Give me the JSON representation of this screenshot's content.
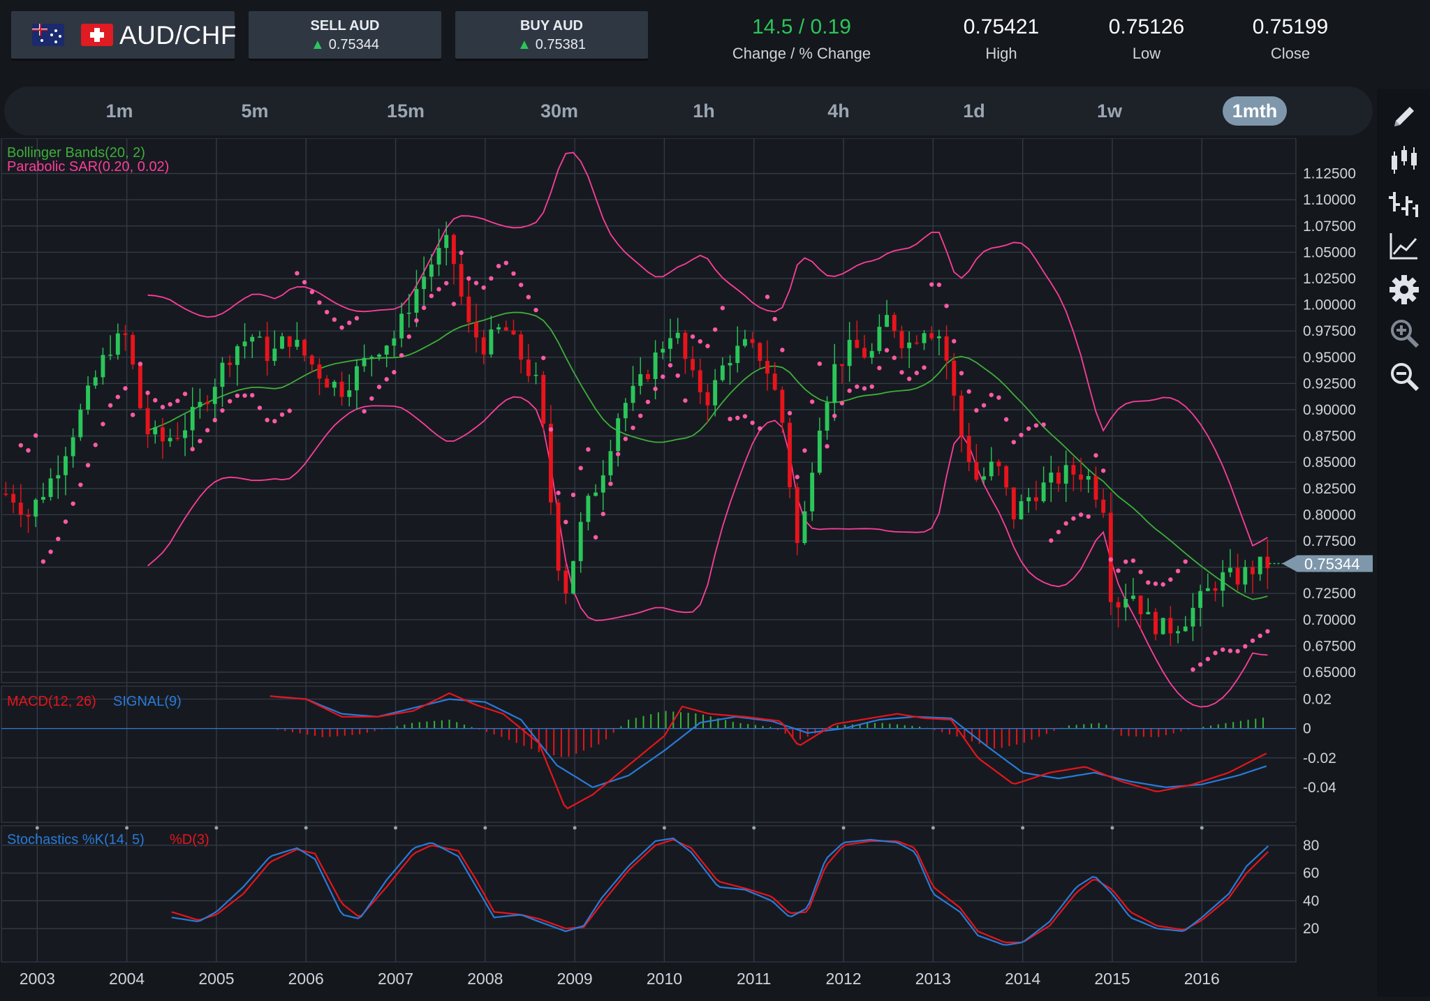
{
  "header": {
    "pair": "AUD/CHF",
    "sell": {
      "label": "SELL AUD",
      "price": "0.75344",
      "arrow": "▲"
    },
    "buy": {
      "label": "BUY AUD",
      "price": "0.75381",
      "arrow": "▲"
    },
    "change": {
      "value": "14.5 / 0.19",
      "label": "Change / % Change"
    },
    "high": {
      "value": "0.75421",
      "label": "High"
    },
    "low": {
      "value": "0.75126",
      "label": "Low"
    },
    "close": {
      "value": "0.75199",
      "label": "Close"
    }
  },
  "timeframes": {
    "items": [
      "1m",
      "5m",
      "15m",
      "30m",
      "1h",
      "4h",
      "1d",
      "1w",
      "1mth"
    ],
    "active": "1mth"
  },
  "toolbar": {
    "icons": [
      "pencil-icon",
      "candlestick-icon",
      "ohlc-icon",
      "line-chart-icon",
      "settings-icon",
      "zoom-in-icon",
      "zoom-out-icon"
    ]
  },
  "colors": {
    "up": "#2bc65a",
    "down": "#e8141c",
    "bollinger_mid": "#3fae3a",
    "bollinger_band": "#ff3d9a",
    "sar": "#ff5aa5",
    "macd": "#e8141c",
    "signal": "#2a7ad8",
    "histogram_pos": "#37b33a",
    "histogram_neg": "#e8141c",
    "stoch_k": "#2a7ad8",
    "stoch_d": "#e8141c"
  },
  "chart_data": [
    {
      "type": "candlestick",
      "panel": "price",
      "legend": [
        "Bollinger Bands(20, 2)",
        "Parabolic SAR(0.20, 0.02)"
      ],
      "x_labels": [
        "2003",
        "2004",
        "2005",
        "2006",
        "2007",
        "2008",
        "2009",
        "2010",
        "2011",
        "2012",
        "2013",
        "2014",
        "2015",
        "2016"
      ],
      "x_range": [
        2002.6,
        2017.05
      ],
      "y_ticks": [
        "1.12500",
        "1.10000",
        "1.07500",
        "1.05000",
        "1.02500",
        "1.00000",
        "0.97500",
        "0.95000",
        "0.92500",
        "0.90000",
        "0.87500",
        "0.85000",
        "0.82500",
        "0.80000",
        "0.77500",
        "0.75000",
        "0.72500",
        "0.70000",
        "0.67500",
        "0.65000"
      ],
      "ylim": [
        0.64,
        1.14
      ],
      "current_price_label": "0.75344",
      "current_price": 0.75344,
      "closes_approx": [
        [
          2002.7,
          0.82
        ],
        [
          2002.9,
          0.8
        ],
        [
          2003.2,
          0.84
        ],
        [
          2003.4,
          0.88
        ],
        [
          2003.6,
          0.92
        ],
        [
          2003.8,
          0.96
        ],
        [
          2004.0,
          0.97
        ],
        [
          2004.2,
          0.88
        ],
        [
          2004.4,
          0.87
        ],
        [
          2004.6,
          0.88
        ],
        [
          2004.8,
          0.9
        ],
        [
          2005.0,
          0.93
        ],
        [
          2005.2,
          0.96
        ],
        [
          2005.4,
          0.97
        ],
        [
          2005.6,
          0.95
        ],
        [
          2005.8,
          0.97
        ],
        [
          2006.0,
          0.95
        ],
        [
          2006.2,
          0.93
        ],
        [
          2006.4,
          0.92
        ],
        [
          2006.6,
          0.94
        ],
        [
          2006.8,
          0.96
        ],
        [
          2007.0,
          0.97
        ],
        [
          2007.2,
          1.01
        ],
        [
          2007.4,
          1.04
        ],
        [
          2007.6,
          1.06
        ],
        [
          2007.8,
          0.98
        ],
        [
          2008.0,
          0.96
        ],
        [
          2008.2,
          0.98
        ],
        [
          2008.4,
          0.95
        ],
        [
          2008.6,
          0.92
        ],
        [
          2008.8,
          0.76
        ],
        [
          2008.9,
          0.73
        ],
        [
          2009.1,
          0.8
        ],
        [
          2009.3,
          0.84
        ],
        [
          2009.5,
          0.9
        ],
        [
          2009.7,
          0.92
        ],
        [
          2009.9,
          0.95
        ],
        [
          2010.1,
          0.98
        ],
        [
          2010.3,
          0.93
        ],
        [
          2010.5,
          0.91
        ],
        [
          2010.7,
          0.95
        ],
        [
          2010.9,
          0.96
        ],
        [
          2011.1,
          0.95
        ],
        [
          2011.3,
          0.9
        ],
        [
          2011.5,
          0.76
        ],
        [
          2011.7,
          0.88
        ],
        [
          2011.9,
          0.94
        ],
        [
          2012.1,
          0.96
        ],
        [
          2012.3,
          0.95
        ],
        [
          2012.5,
          0.99
        ],
        [
          2012.7,
          0.96
        ],
        [
          2012.9,
          0.98
        ],
        [
          2013.1,
          0.97
        ],
        [
          2013.3,
          0.88
        ],
        [
          2013.5,
          0.83
        ],
        [
          2013.7,
          0.85
        ],
        [
          2013.9,
          0.8
        ],
        [
          2014.1,
          0.82
        ],
        [
          2014.3,
          0.83
        ],
        [
          2014.5,
          0.84
        ],
        [
          2014.7,
          0.84
        ],
        [
          2014.9,
          0.81
        ],
        [
          2015.0,
          0.71
        ],
        [
          2015.2,
          0.73
        ],
        [
          2015.4,
          0.7
        ],
        [
          2015.6,
          0.69
        ],
        [
          2015.8,
          0.7
        ],
        [
          2016.0,
          0.72
        ],
        [
          2016.2,
          0.74
        ],
        [
          2016.4,
          0.74
        ],
        [
          2016.6,
          0.75
        ],
        [
          2016.75,
          0.753
        ]
      ]
    },
    {
      "type": "line",
      "panel": "macd",
      "legend": [
        "MACD(12, 26)",
        "SIGNAL(9)"
      ],
      "y_ticks": [
        "0.02",
        "0",
        "-0.02",
        "-0.04"
      ],
      "ylim": [
        -0.06,
        0.025
      ],
      "series": [
        {
          "name": "MACD(12, 26)",
          "points": [
            [
              2005.6,
              0.022
            ],
            [
              2006.0,
              0.02
            ],
            [
              2006.4,
              0.008
            ],
            [
              2006.8,
              0.008
            ],
            [
              2007.2,
              0.012
            ],
            [
              2007.6,
              0.024
            ],
            [
              2007.9,
              0.016
            ],
            [
              2008.2,
              0.01
            ],
            [
              2008.6,
              -0.01
            ],
            [
              2008.9,
              -0.055
            ],
            [
              2009.2,
              -0.045
            ],
            [
              2009.6,
              -0.025
            ],
            [
              2010.0,
              -0.005
            ],
            [
              2010.2,
              0.015
            ],
            [
              2010.5,
              0.01
            ],
            [
              2010.9,
              0.008
            ],
            [
              2011.3,
              0.005
            ],
            [
              2011.5,
              -0.012
            ],
            [
              2011.9,
              0.003
            ],
            [
              2012.2,
              0.006
            ],
            [
              2012.6,
              0.01
            ],
            [
              2012.9,
              0.007
            ],
            [
              2013.2,
              0.006
            ],
            [
              2013.5,
              -0.02
            ],
            [
              2013.9,
              -0.038
            ],
            [
              2014.3,
              -0.03
            ],
            [
              2014.7,
              -0.026
            ],
            [
              2015.1,
              -0.036
            ],
            [
              2015.5,
              -0.043
            ],
            [
              2015.9,
              -0.038
            ],
            [
              2016.3,
              -0.03
            ],
            [
              2016.75,
              -0.016
            ]
          ]
        },
        {
          "name": "SIGNAL(9)",
          "points": [
            [
              2005.6,
              0.022
            ],
            [
              2006.0,
              0.02
            ],
            [
              2006.4,
              0.01
            ],
            [
              2006.8,
              0.008
            ],
            [
              2007.2,
              0.014
            ],
            [
              2007.6,
              0.02
            ],
            [
              2008.0,
              0.018
            ],
            [
              2008.4,
              0.006
            ],
            [
              2008.8,
              -0.025
            ],
            [
              2009.2,
              -0.04
            ],
            [
              2009.6,
              -0.032
            ],
            [
              2010.0,
              -0.015
            ],
            [
              2010.4,
              0.004
            ],
            [
              2010.8,
              0.008
            ],
            [
              2011.2,
              0.005
            ],
            [
              2011.6,
              -0.003
            ],
            [
              2012.0,
              0.0
            ],
            [
              2012.4,
              0.006
            ],
            [
              2012.8,
              0.008
            ],
            [
              2013.2,
              0.007
            ],
            [
              2013.6,
              -0.012
            ],
            [
              2014.0,
              -0.03
            ],
            [
              2014.4,
              -0.034
            ],
            [
              2014.8,
              -0.03
            ],
            [
              2015.2,
              -0.036
            ],
            [
              2015.6,
              -0.04
            ],
            [
              2016.0,
              -0.038
            ],
            [
              2016.4,
              -0.032
            ],
            [
              2016.75,
              -0.025
            ]
          ]
        }
      ],
      "histogram": [
        [
          2005.6,
          0.0
        ],
        [
          2006.2,
          -0.006
        ],
        [
          2006.6,
          -0.004
        ],
        [
          2007.2,
          0.004
        ],
        [
          2007.6,
          0.006
        ],
        [
          2008.2,
          -0.006
        ],
        [
          2008.6,
          -0.016
        ],
        [
          2008.9,
          -0.02
        ],
        [
          2009.3,
          -0.01
        ],
        [
          2009.6,
          0.006
        ],
        [
          2010.0,
          0.012
        ],
        [
          2010.4,
          0.01
        ],
        [
          2010.8,
          0.004
        ],
        [
          2011.2,
          0.001
        ],
        [
          2011.5,
          -0.008
        ],
        [
          2011.9,
          0.002
        ],
        [
          2012.4,
          0.004
        ],
        [
          2012.9,
          0.001
        ],
        [
          2013.3,
          -0.006
        ],
        [
          2013.7,
          -0.014
        ],
        [
          2014.0,
          -0.01
        ],
        [
          2014.5,
          0.002
        ],
        [
          2014.9,
          0.004
        ],
        [
          2015.1,
          -0.005
        ],
        [
          2015.5,
          -0.006
        ],
        [
          2015.9,
          0.0
        ],
        [
          2016.3,
          0.004
        ],
        [
          2016.75,
          0.008
        ]
      ]
    },
    {
      "type": "line",
      "panel": "stochastics",
      "legend": [
        "Stochastics %K(14, 5)",
        "%D(3)"
      ],
      "y_ticks": [
        "80",
        "60",
        "40",
        "20"
      ],
      "ylim": [
        0,
        90
      ],
      "series": [
        {
          "name": "%K(14, 5)",
          "points": [
            [
              2004.5,
              28
            ],
            [
              2004.8,
              25
            ],
            [
              2005.0,
              32
            ],
            [
              2005.3,
              50
            ],
            [
              2005.6,
              72
            ],
            [
              2005.9,
              78
            ],
            [
              2006.1,
              70
            ],
            [
              2006.4,
              30
            ],
            [
              2006.6,
              27
            ],
            [
              2006.9,
              55
            ],
            [
              2007.2,
              78
            ],
            [
              2007.4,
              82
            ],
            [
              2007.7,
              72
            ],
            [
              2007.9,
              50
            ],
            [
              2008.1,
              28
            ],
            [
              2008.4,
              30
            ],
            [
              2008.6,
              25
            ],
            [
              2008.9,
              18
            ],
            [
              2009.1,
              22
            ],
            [
              2009.3,
              42
            ],
            [
              2009.6,
              65
            ],
            [
              2009.9,
              83
            ],
            [
              2010.1,
              85
            ],
            [
              2010.3,
              75
            ],
            [
              2010.6,
              50
            ],
            [
              2010.9,
              48
            ],
            [
              2011.2,
              40
            ],
            [
              2011.4,
              28
            ],
            [
              2011.6,
              35
            ],
            [
              2011.8,
              70
            ],
            [
              2012.0,
              82
            ],
            [
              2012.3,
              84
            ],
            [
              2012.6,
              82
            ],
            [
              2012.8,
              75
            ],
            [
              2013.0,
              45
            ],
            [
              2013.3,
              32
            ],
            [
              2013.5,
              15
            ],
            [
              2013.8,
              8
            ],
            [
              2014.0,
              10
            ],
            [
              2014.3,
              25
            ],
            [
              2014.6,
              50
            ],
            [
              2014.8,
              58
            ],
            [
              2015.0,
              45
            ],
            [
              2015.2,
              28
            ],
            [
              2015.5,
              20
            ],
            [
              2015.8,
              18
            ],
            [
              2016.0,
              28
            ],
            [
              2016.3,
              45
            ],
            [
              2016.5,
              65
            ],
            [
              2016.75,
              80
            ]
          ]
        },
        {
          "name": "%D(3)",
          "points": [
            [
              2004.5,
              32
            ],
            [
              2004.8,
              26
            ],
            [
              2005.0,
              30
            ],
            [
              2005.3,
              45
            ],
            [
              2005.6,
              68
            ],
            [
              2005.9,
              77
            ],
            [
              2006.1,
              74
            ],
            [
              2006.4,
              38
            ],
            [
              2006.6,
              28
            ],
            [
              2006.9,
              50
            ],
            [
              2007.2,
              74
            ],
            [
              2007.4,
              80
            ],
            [
              2007.7,
              76
            ],
            [
              2007.9,
              55
            ],
            [
              2008.1,
              32
            ],
            [
              2008.4,
              30
            ],
            [
              2008.6,
              27
            ],
            [
              2008.9,
              20
            ],
            [
              2009.1,
              21
            ],
            [
              2009.3,
              38
            ],
            [
              2009.6,
              62
            ],
            [
              2009.9,
              80
            ],
            [
              2010.1,
              84
            ],
            [
              2010.3,
              78
            ],
            [
              2010.6,
              54
            ],
            [
              2010.9,
              49
            ],
            [
              2011.2,
              43
            ],
            [
              2011.4,
              31
            ],
            [
              2011.6,
              32
            ],
            [
              2011.8,
              65
            ],
            [
              2012.0,
              80
            ],
            [
              2012.3,
              83
            ],
            [
              2012.6,
              83
            ],
            [
              2012.8,
              78
            ],
            [
              2013.0,
              50
            ],
            [
              2013.3,
              35
            ],
            [
              2013.5,
              18
            ],
            [
              2013.8,
              10
            ],
            [
              2014.0,
              10
            ],
            [
              2014.3,
              22
            ],
            [
              2014.6,
              46
            ],
            [
              2014.8,
              56
            ],
            [
              2015.0,
              48
            ],
            [
              2015.2,
              32
            ],
            [
              2015.5,
              22
            ],
            [
              2015.8,
              19
            ],
            [
              2016.0,
              26
            ],
            [
              2016.3,
              42
            ],
            [
              2016.5,
              60
            ],
            [
              2016.75,
              76
            ]
          ]
        }
      ]
    }
  ]
}
